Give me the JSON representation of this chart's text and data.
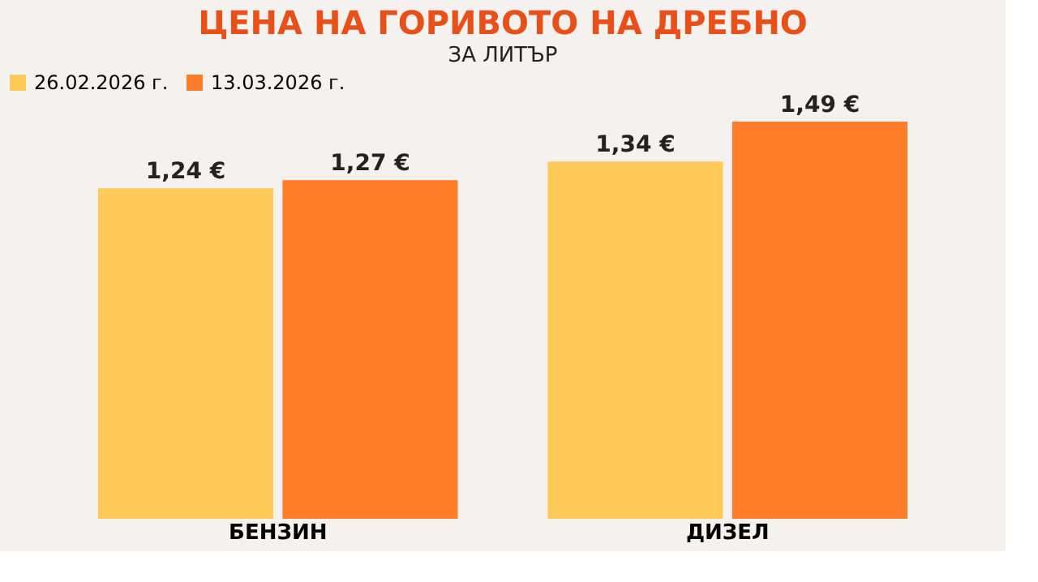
{
  "chart_data": {
    "type": "bar",
    "title": "ЦЕНА НА ГОРИВОТО НА ДРЕБНО",
    "subtitle": "ЗА ЛИТЪР",
    "categories": [
      "БЕНЗИН",
      "ДИЗЕЛ"
    ],
    "series": [
      {
        "name": "26.02.2026 г.",
        "color": "#fecb5a",
        "values": [
          1.24,
          1.34
        ],
        "value_labels": [
          "1,24 €",
          "1,34 €"
        ]
      },
      {
        "name": "13.03.2026 г.",
        "color": "#fd7d2b",
        "values": [
          1.27,
          1.49
        ],
        "value_labels": [
          "1,27 €",
          "1,49 €"
        ]
      }
    ],
    "legend": "top",
    "grid": false
  }
}
